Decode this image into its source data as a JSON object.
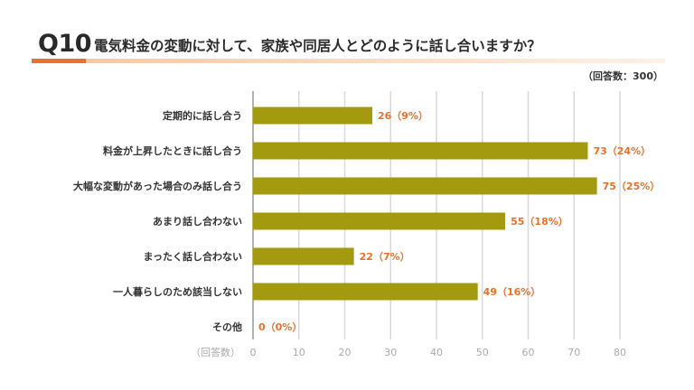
{
  "title": {
    "q_number": "Q10",
    "question": "電気料金の変動に対して、家族や同居人とどのように話し合いますか？"
  },
  "respondents": "（回答数：300）",
  "colors": {
    "bar": "#a39a0f",
    "value_label": "#e8722a",
    "accent": "#e8722a",
    "grid": "#d9d9d9",
    "axis": "#999999"
  },
  "chart_data": {
    "type": "bar",
    "orientation": "horizontal",
    "categories": [
      "定期的に話し合う",
      "料金が上昇したときに話し合う",
      "大幅な変動があった場合のみ話し合う",
      "あまり話し合わない",
      "まったく話し合わない",
      "一人暮らしのため該当しない",
      "その他"
    ],
    "values": [
      26,
      73,
      75,
      55,
      22,
      49,
      0
    ],
    "data_labels": [
      "26（9%）",
      "73（24%）",
      "75（25%）",
      "55（18%）",
      "22（7%）",
      "49（16%）",
      "0（0%）"
    ],
    "xlabel": "（回答数）",
    "xlim": [
      0,
      80
    ],
    "xticks": [
      "0",
      "10",
      "20",
      "30",
      "40",
      "50",
      "60",
      "70",
      "80"
    ],
    "grid": true
  }
}
